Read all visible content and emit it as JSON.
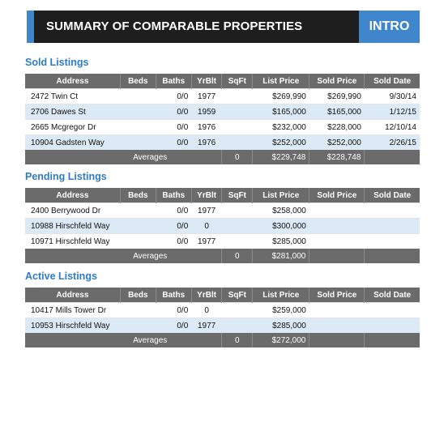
{
  "banner": {
    "title": "SUMMARY OF COMPARABLE PROPERTIES",
    "intro": "INTRO"
  },
  "columns": [
    "Address",
    "Beds",
    "Baths",
    "YrBlt",
    "SqFt",
    "List Price",
    "Sold Price",
    "Sold Date"
  ],
  "averages_label": "Averages",
  "colors": {
    "accent": "#3f86cc",
    "header_gray": "#6b6b6b",
    "row_stripe": "#dceaf7",
    "section_title": "#2f7bc4"
  },
  "sold": {
    "title": "Sold Listings",
    "rows": [
      {
        "address": "2472 Twin Ct",
        "beds": "",
        "baths": "0/0",
        "yrblt": "1977",
        "sqft": "",
        "list_price": "$269,990",
        "sold_price": "$269,990",
        "sold_date": "9/30/14"
      },
      {
        "address": "2706 Dawes St",
        "beds": "",
        "baths": "0/0",
        "yrblt": "1959",
        "sqft": "",
        "list_price": "$165,000",
        "sold_price": "$165,000",
        "sold_date": "1/12/15"
      },
      {
        "address": "2665 Mcgregor Dr",
        "beds": "",
        "baths": "0/0",
        "yrblt": "1976",
        "sqft": "",
        "list_price": "$232,000",
        "sold_price": "$228,000",
        "sold_date": "12/10/14"
      },
      {
        "address": "10904 Gadsten Way",
        "beds": "",
        "baths": "0/0",
        "yrblt": "1976",
        "sqft": "",
        "list_price": "$252,000",
        "sold_price": "$252,000",
        "sold_date": "2/26/15"
      }
    ],
    "averages": {
      "sqft": "0",
      "list_price": "$229,748",
      "sold_price": "$228,748"
    }
  },
  "pending": {
    "title": "Pending Listings",
    "rows": [
      {
        "address": "2400 Berrywood Dr",
        "beds": "",
        "baths": "0/0",
        "yrblt": "1977",
        "sqft": "",
        "list_price": "$258,000",
        "sold_price": "",
        "sold_date": ""
      },
      {
        "address": "10988 Hirschfeld Way",
        "beds": "",
        "baths": "0/0",
        "yrblt": "0",
        "sqft": "",
        "list_price": "$300,000",
        "sold_price": "",
        "sold_date": ""
      },
      {
        "address": "10971 Hirschfeld Way",
        "beds": "",
        "baths": "0/0",
        "yrblt": "1977",
        "sqft": "",
        "list_price": "$285,000",
        "sold_price": "",
        "sold_date": ""
      }
    ],
    "averages": {
      "sqft": "0",
      "list_price": "$281,000",
      "sold_price": ""
    }
  },
  "active": {
    "title": "Active Listings",
    "rows": [
      {
        "address": "10417 Mills Tower Dr",
        "beds": "",
        "baths": "0/0",
        "yrblt": "0",
        "sqft": "",
        "list_price": "$259,000",
        "sold_price": "",
        "sold_date": ""
      },
      {
        "address": "10953 Hirschfeld Way",
        "beds": "",
        "baths": "0/0",
        "yrblt": "1977",
        "sqft": "",
        "list_price": "$285,000",
        "sold_price": "",
        "sold_date": ""
      }
    ],
    "averages": {
      "sqft": "0",
      "list_price": "$272,000",
      "sold_price": ""
    }
  }
}
